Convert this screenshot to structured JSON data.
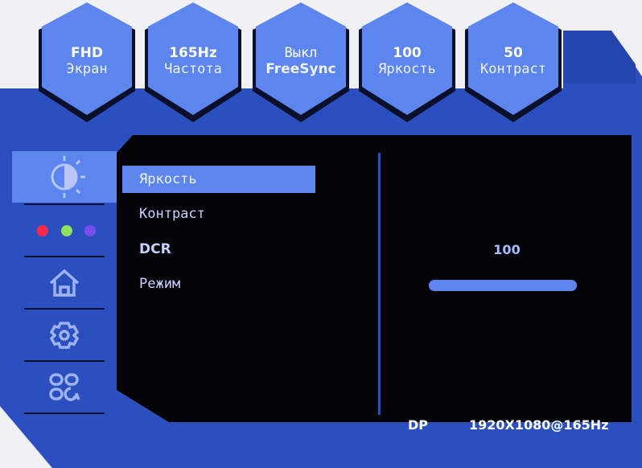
{
  "top_tiles": [
    {
      "value": "FHD",
      "label": "Экран"
    },
    {
      "value": "165Hz",
      "label": "Частота"
    },
    {
      "value": "Выкл",
      "label": "FreeSync"
    },
    {
      "value": "100",
      "label": "Яркость"
    },
    {
      "value": "50",
      "label": "Контраст"
    }
  ],
  "sidebar": {
    "items": [
      {
        "icon": "brightness-contrast-icon",
        "selected": true
      },
      {
        "icon": "color-dots-icon",
        "selected": false
      },
      {
        "icon": "home-icon",
        "selected": false
      },
      {
        "icon": "gear-icon",
        "selected": false
      },
      {
        "icon": "apps-refresh-icon",
        "selected": false
      }
    ]
  },
  "menu": {
    "items": [
      {
        "label": "Яркость",
        "selected": true
      },
      {
        "label": "Контраст",
        "selected": false
      },
      {
        "label": "DCR",
        "selected": false
      },
      {
        "label": "Режим",
        "selected": false
      }
    ]
  },
  "value_panel": {
    "value": "100",
    "slider_percent": 100
  },
  "status": {
    "input": "DP",
    "resolution": "1920X1080@165Hz"
  },
  "colors": {
    "panel_blue": "#2b4fbf",
    "tile_blue": "#5c86ee",
    "dot_red": "#ff2a4a",
    "dot_green": "#8fe05a",
    "dot_purple": "#7a4cf0"
  }
}
